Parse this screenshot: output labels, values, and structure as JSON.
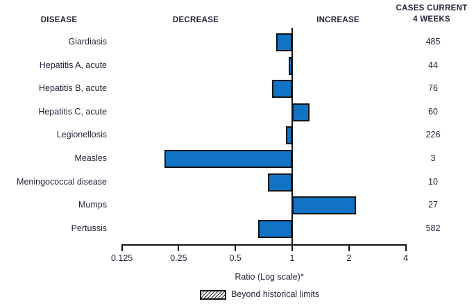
{
  "figure": {
    "columns": {
      "disease": "DISEASE",
      "decrease": "DECREASE",
      "increase": "INCREASE",
      "cases": "CASES CURRENT\n4 WEEKS"
    },
    "axis_label": "Ratio (Log scale)*",
    "legend_label": "Beyond historical limits"
  },
  "chart_data": {
    "type": "bar",
    "orientation": "horizontal",
    "x_scale": "log2",
    "baseline": 1,
    "xlim": [
      0.125,
      4
    ],
    "x_ticks": [
      0.125,
      0.25,
      0.5,
      1,
      2,
      4
    ],
    "x_tick_labels": [
      "0.125",
      "0.25",
      "0.5",
      "1",
      "2",
      "4"
    ],
    "xlabel": "Ratio (Log scale)*",
    "legend": [
      {
        "label": "Beyond historical limits",
        "style": "hatched"
      }
    ],
    "columns": [
      "DISEASE",
      "DECREASE",
      "INCREASE",
      "CASES CURRENT 4 WEEKS"
    ],
    "rows": [
      {
        "disease": "Giardiasis",
        "ratio": 0.82,
        "cases_current_4_weeks": 485,
        "beyond_historical_limits": false
      },
      {
        "disease": "Hepatitis A, acute",
        "ratio": 0.96,
        "cases_current_4_weeks": 44,
        "beyond_historical_limits": false
      },
      {
        "disease": "Hepatitis B, acute",
        "ratio": 0.78,
        "cases_current_4_weeks": 76,
        "beyond_historical_limits": false
      },
      {
        "disease": "Hepatitis C, acute",
        "ratio": 1.24,
        "cases_current_4_weeks": 60,
        "beyond_historical_limits": false
      },
      {
        "disease": "Legionellosis",
        "ratio": 0.93,
        "cases_current_4_weeks": 226,
        "beyond_historical_limits": false
      },
      {
        "disease": "Measles",
        "ratio": 0.21,
        "cases_current_4_weeks": 3,
        "beyond_historical_limits": false
      },
      {
        "disease": "Meningococcal disease",
        "ratio": 0.74,
        "cases_current_4_weeks": 10,
        "beyond_historical_limits": false
      },
      {
        "disease": "Mumps",
        "ratio": 2.18,
        "cases_current_4_weeks": 27,
        "beyond_historical_limits": false
      },
      {
        "disease": "Pertussis",
        "ratio": 0.66,
        "cases_current_4_weeks": 582,
        "beyond_historical_limits": false
      }
    ],
    "colors": {
      "bar_fill": "#1173c4",
      "bar_border": "#121212",
      "text": "#23233a"
    }
  }
}
